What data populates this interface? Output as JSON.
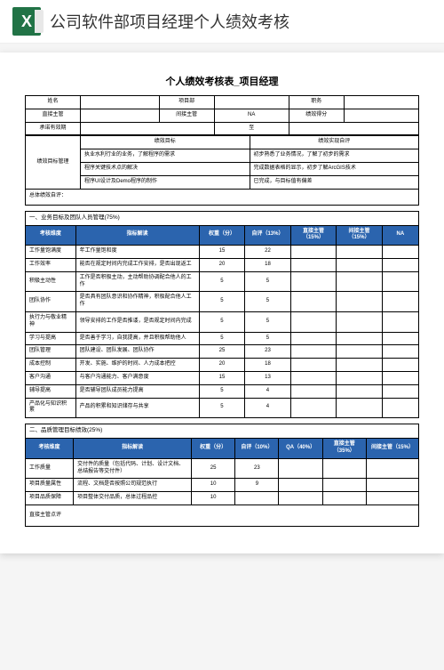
{
  "app": {
    "title": "公司软件部项目经理个人绩效考核"
  },
  "doc": {
    "title": "个人绩效考核表_项目经理"
  },
  "info": {
    "name_label": "姓名",
    "name_val": "",
    "dept_label": "项目部",
    "dept_val": "",
    "pos_label": "职务",
    "pos_val": "",
    "sup_label": "直接主管",
    "sup_val": "",
    "next_sup_label": "间接主管",
    "next_sup_val": "NA",
    "score_label": "绩效得分",
    "score_val": "",
    "period_label": "承诺有效期",
    "period_val": "",
    "to_label": "至"
  },
  "goals": {
    "section_label": "绩效目标管理",
    "goal_header": "绩效目标",
    "self_header": "绩效实现自评",
    "rows": [
      {
        "goal": "执业水利行业的业务，了解程序的需求",
        "self": "初步熟悉了业务情况，了解了初步的需求"
      },
      {
        "goal": "程序关键技术点的解决",
        "self": "完成数据表格的显示，初步了解ArcGIS技术"
      },
      {
        "goal": "程序UI设计及Demo程序的制作",
        "self": "已完成，与目标值有偏差"
      }
    ],
    "overall_label": "总体绩效自评："
  },
  "sectionA": {
    "title": "一、业务目标及团队人员管理(75%)",
    "headers": {
      "dim": "考核维度",
      "desc": "指标解读",
      "weight": "权重（分）",
      "self": "自评（13%）",
      "sup": "直接主管（15%）",
      "next": "间接主管（15%）",
      "na": "NA"
    },
    "rows": [
      {
        "dim": "工作量饱满度",
        "desc": "年工作量饱和度",
        "weight": "15",
        "self": "22",
        "sup": "",
        "next": "",
        "na": ""
      },
      {
        "dim": "工作效率",
        "desc": "能否在规定时间内完成工作安排，是否出现返工",
        "weight": "20",
        "self": "18",
        "sup": "",
        "next": "",
        "na": ""
      },
      {
        "dim": "积极主动性",
        "desc": "工作是否积极主动，主动帮助协调配合他人的工作",
        "weight": "5",
        "self": "5",
        "sup": "",
        "next": "",
        "na": ""
      },
      {
        "dim": "团队协作",
        "desc": "是否具有团队意识和协作精神，积极配合他人工作",
        "weight": "5",
        "self": "5",
        "sup": "",
        "next": "",
        "na": ""
      },
      {
        "dim": "执行力与敬业精神",
        "desc": "领导安排的工作是否推诿，是否规定时间内完成",
        "weight": "5",
        "self": "5",
        "sup": "",
        "next": "",
        "na": ""
      },
      {
        "dim": "学习与提高",
        "desc": "是否善于学习，自我提高，并且积极帮助他人",
        "weight": "5",
        "self": "5",
        "sup": "",
        "next": "",
        "na": ""
      },
      {
        "dim": "团队管理",
        "desc": "团队建设、团队发展、团队协作",
        "weight": "25",
        "self": "23",
        "sup": "",
        "next": "",
        "na": ""
      },
      {
        "dim": "成本控制",
        "desc": "开发、实施、维护的时间、人力成本把控",
        "weight": "20",
        "self": "18",
        "sup": "",
        "next": "",
        "na": ""
      },
      {
        "dim": "客户沟通",
        "desc": "与客户沟通能力、客户满意度",
        "weight": "15",
        "self": "13",
        "sup": "",
        "next": "",
        "na": ""
      },
      {
        "dim": "辅导提高",
        "desc": "是否辅导团队成员能力提高",
        "weight": "5",
        "self": "4",
        "sup": "",
        "next": "",
        "na": ""
      },
      {
        "dim": "产品化与知识积累",
        "desc": "产品的积累和知识储存与共享",
        "weight": "5",
        "self": "4",
        "sup": "",
        "next": "",
        "na": ""
      }
    ]
  },
  "sectionB": {
    "title": "二、品质管理目标绩效(25%)",
    "headers": {
      "dim": "考核维度",
      "desc": "指标解读",
      "weight": "权重（分）",
      "self": "自评（10%）",
      "qa": "QA（40%）",
      "sup": "直接主管（35%）",
      "next": "间接主管（15%）"
    },
    "rows": [
      {
        "dim": "工作质量",
        "desc": "交付件的质量（包括代码、计划、设计文档、总结报告等交付件）",
        "weight": "25",
        "self": "23",
        "qa": "",
        "sup": "",
        "next": ""
      },
      {
        "dim": "项目质量属性",
        "desc": "流程、文档是否按照公司规范执行",
        "weight": "10",
        "self": "9",
        "qa": "",
        "sup": "",
        "next": ""
      },
      {
        "dim": "项目品质保障",
        "desc": "项目整体交付品质，总体过程品控",
        "weight": "10",
        "self": "",
        "qa": "",
        "sup": "",
        "next": ""
      }
    ],
    "footer_label": "直接主管点评"
  },
  "colors": {
    "primary": "#2b64ae",
    "excel_green": "#217346"
  }
}
